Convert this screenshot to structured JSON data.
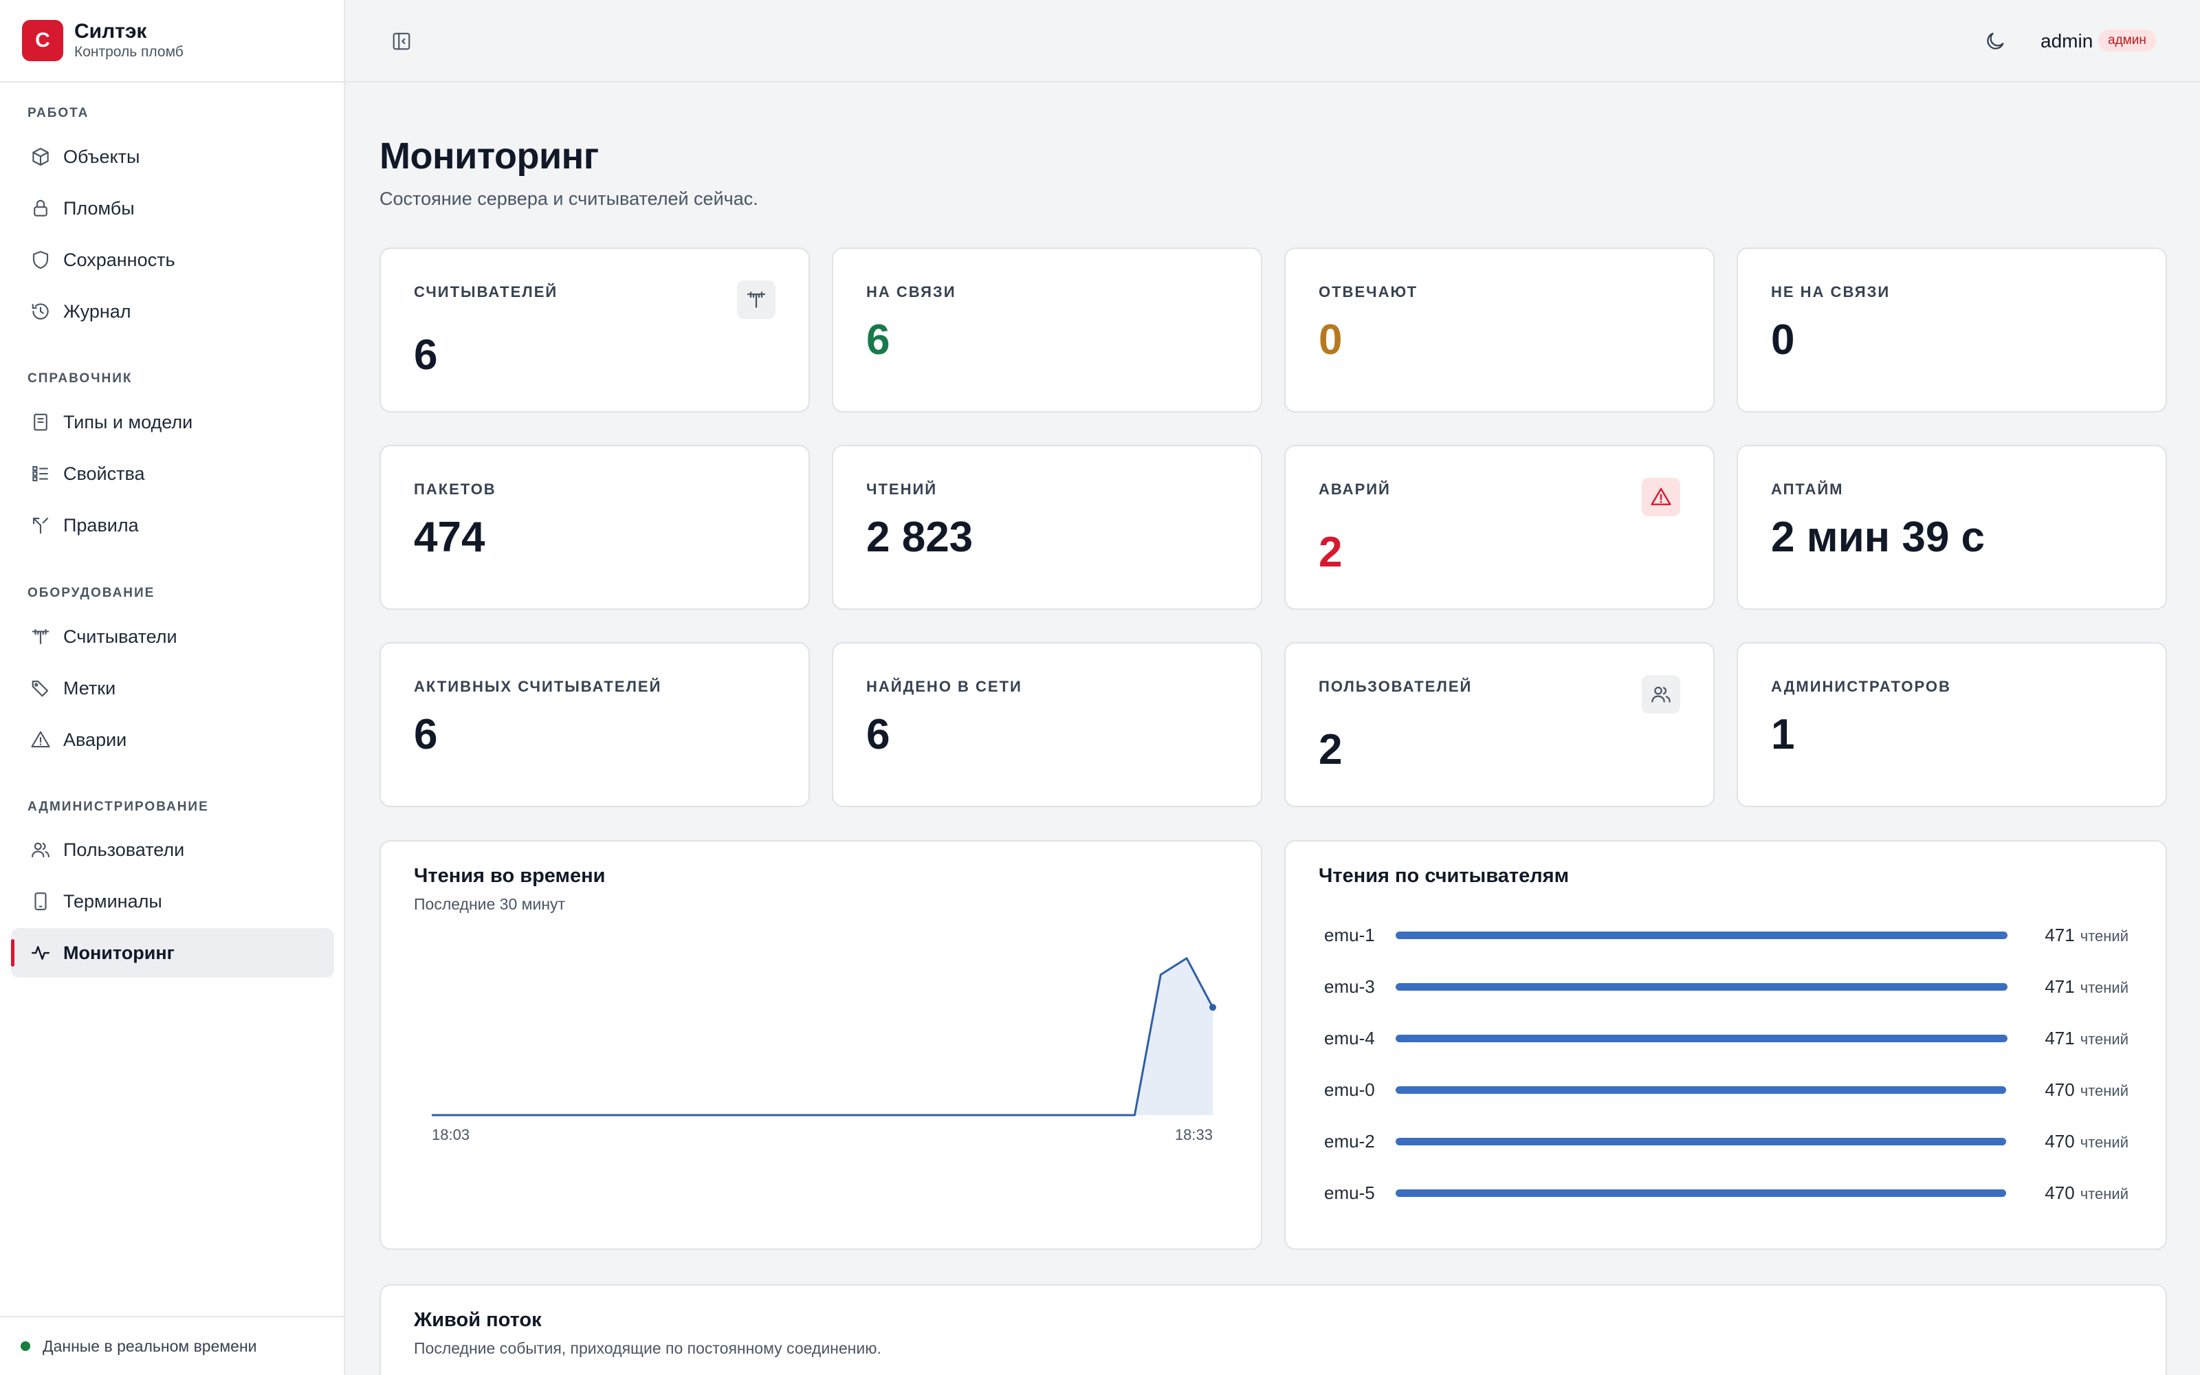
{
  "brand": {
    "logo_letter": "С",
    "name": "Силтэк",
    "subtitle": "Контроль пломб"
  },
  "sidebar": {
    "sections": [
      {
        "title": "РАБОТА",
        "items": [
          {
            "label": "Объекты",
            "icon": "cube-icon"
          },
          {
            "label": "Пломбы",
            "icon": "lock-icon"
          },
          {
            "label": "Сохранность",
            "icon": "shield-icon"
          },
          {
            "label": "Журнал",
            "icon": "history-icon"
          }
        ]
      },
      {
        "title": "СПРАВОЧНИК",
        "items": [
          {
            "label": "Типы и модели",
            "icon": "book-icon"
          },
          {
            "label": "Свойства",
            "icon": "list-icon"
          },
          {
            "label": "Правила",
            "icon": "split-icon"
          }
        ]
      },
      {
        "title": "ОБОРУДОВАНИЕ",
        "items": [
          {
            "label": "Считыватели",
            "icon": "antenna-icon"
          },
          {
            "label": "Метки",
            "icon": "tag-icon"
          },
          {
            "label": "Аварии",
            "icon": "alert-icon"
          }
        ]
      },
      {
        "title": "АДМИНИСТРИРОВАНИЕ",
        "items": [
          {
            "label": "Пользователи",
            "icon": "users-icon"
          },
          {
            "label": "Терминалы",
            "icon": "phone-icon"
          },
          {
            "label": "Мониторинг",
            "icon": "activity-icon",
            "active": true
          }
        ]
      }
    ],
    "footer": "Данные в реальном времени"
  },
  "topbar": {
    "user": "admin",
    "role": "админ"
  },
  "page": {
    "title": "Мониторинг",
    "subtitle": "Состояние сервера и считывателей сейчас."
  },
  "stats": [
    {
      "label": "СЧИТЫВАТЕЛЕЙ",
      "value": "6",
      "icon": "antenna-icon"
    },
    {
      "label": "НА СВЯЗИ",
      "value": "6",
      "color": "#177a4a"
    },
    {
      "label": "ОТВЕЧАЮТ",
      "value": "0",
      "color": "#b7791f"
    },
    {
      "label": "НЕ НА СВЯЗИ",
      "value": "0"
    },
    {
      "label": "ПАКЕТОВ",
      "value": "474"
    },
    {
      "label": "ЧТЕНИЙ",
      "value": "2 823"
    },
    {
      "label": "АВАРИЙ",
      "value": "2",
      "color": "#d7192f",
      "icon": "alert-icon"
    },
    {
      "label": "АПТАЙМ",
      "value": "2 мин 39 с"
    },
    {
      "label": "АКТИВНЫХ СЧИТЫВАТЕЛЕЙ",
      "value": "6"
    },
    {
      "label": "НАЙДЕНО В СЕТИ",
      "value": "6"
    },
    {
      "label": "ПОЛЬЗОВАТЕЛЕЙ",
      "value": "2",
      "icon": "users-icon"
    },
    {
      "label": "АДМИНИСТРАТОРОВ",
      "value": "1"
    }
  ],
  "readings_chart": {
    "title": "Чтения во времени",
    "subtitle": "Последние 30 минут"
  },
  "readers_panel": {
    "title": "Чтения по считывателям",
    "unit": "чтений"
  },
  "live": {
    "title": "Живой поток",
    "subtitle": "Последние события, приходящие по постоянному соединению."
  },
  "chart_data": [
    {
      "type": "area",
      "x": [
        "18:03",
        "18:04",
        "18:05",
        "18:06",
        "18:07",
        "18:08",
        "18:09",
        "18:10",
        "18:11",
        "18:12",
        "18:13",
        "18:14",
        "18:15",
        "18:16",
        "18:17",
        "18:18",
        "18:19",
        "18:20",
        "18:21",
        "18:22",
        "18:23",
        "18:24",
        "18:25",
        "18:26",
        "18:27",
        "18:28",
        "18:29",
        "18:30",
        "18:31",
        "18:32",
        "18:33"
      ],
      "values": [
        0,
        0,
        0,
        0,
        0,
        0,
        0,
        0,
        0,
        0,
        0,
        0,
        0,
        0,
        0,
        0,
        0,
        0,
        0,
        0,
        0,
        0,
        0,
        0,
        0,
        0,
        0,
        0,
        1030,
        1150,
        790
      ],
      "x_tick_labels": [
        "18:03",
        "18:33"
      ],
      "ylim": [
        0,
        1250
      ],
      "color": "#2f5fa8"
    },
    {
      "type": "bar",
      "orientation": "horizontal",
      "categories": [
        "emu-1",
        "emu-3",
        "emu-4",
        "emu-0",
        "emu-2",
        "emu-5"
      ],
      "values": [
        471,
        471,
        471,
        470,
        470,
        470
      ],
      "color": "#3a6ec0"
    }
  ]
}
